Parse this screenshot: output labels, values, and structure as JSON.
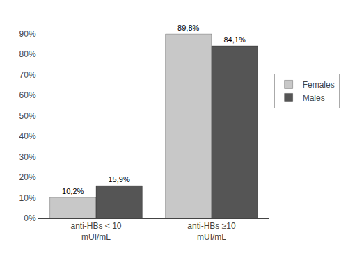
{
  "chart_data": {
    "type": "bar",
    "categories": [
      "anti-HBs < 10\nmUI/mL",
      "anti-HBs ≥10\nmUI/mL"
    ],
    "series": [
      {
        "name": "Females",
        "color": "#c8c8c8",
        "values": [
          10.2,
          89.8
        ],
        "value_labels": [
          "10,2%",
          "89,8%"
        ]
      },
      {
        "name": "Males",
        "color": "#555555",
        "values": [
          15.9,
          84.1
        ],
        "value_labels": [
          "15,9%",
          "84,1%"
        ]
      }
    ],
    "ylim": [
      0,
      98
    ],
    "yticks": [
      {
        "value": 0,
        "label": "0%"
      },
      {
        "value": 10,
        "label": "10%"
      },
      {
        "value": 20,
        "label": "20%"
      },
      {
        "value": 30,
        "label": "30%"
      },
      {
        "value": 40,
        "label": "40%"
      },
      {
        "value": 50,
        "label": "50%"
      },
      {
        "value": 60,
        "label": "60%"
      },
      {
        "value": 70,
        "label": "70%"
      },
      {
        "value": 80,
        "label": "80%"
      },
      {
        "value": 90,
        "label": "90%"
      }
    ],
    "grid": false,
    "legend": "right",
    "data_labels": true
  }
}
